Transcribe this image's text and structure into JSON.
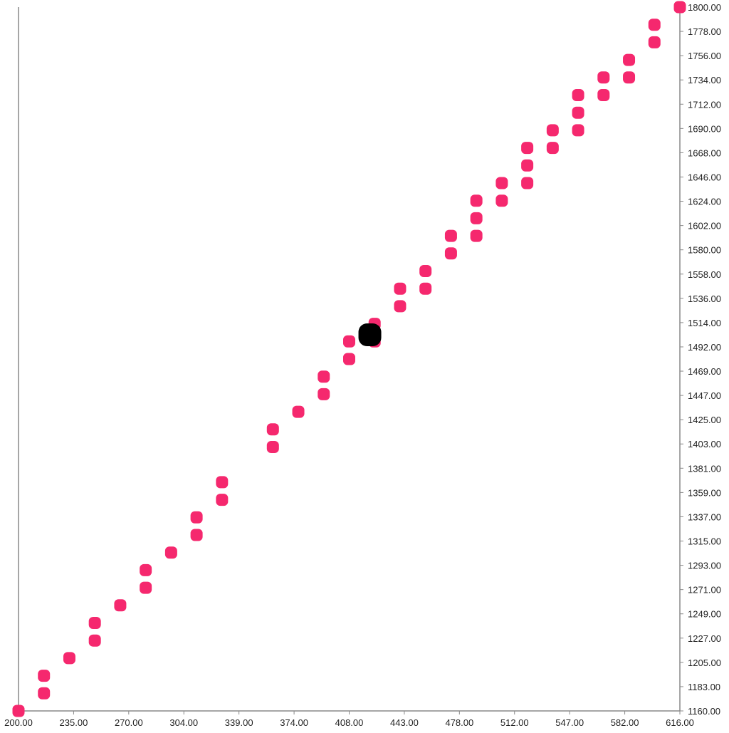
{
  "colors": {
    "point": "#f5286e",
    "highlight": "#000000",
    "axis": "#888888",
    "background": "#ffffff"
  },
  "chart_data": {
    "type": "scatter",
    "title": "",
    "xlabel": "",
    "ylabel": "",
    "xlim": [
      200,
      616
    ],
    "ylim": [
      1160,
      1800
    ],
    "grid": false,
    "legend": "none",
    "x_ticks": [
      "200.00",
      "235.00",
      "270.00",
      "304.00",
      "339.00",
      "374.00",
      "408.00",
      "443.00",
      "478.00",
      "512.00",
      "547.00",
      "582.00",
      "616.00"
    ],
    "y_ticks": [
      "1160.00",
      "1183.00",
      "1205.00",
      "1227.00",
      "1249.00",
      "1271.00",
      "1293.00",
      "1315.00",
      "1337.00",
      "1359.00",
      "1381.00",
      "1403.00",
      "1425.00",
      "1447.00",
      "1469.00",
      "1492.00",
      "1514.00",
      "1536.00",
      "1558.00",
      "1580.00",
      "1602.00",
      "1624.00",
      "1646.00",
      "1668.00",
      "1690.00",
      "1712.00",
      "1734.00",
      "1756.00",
      "1778.00",
      "1800.00"
    ],
    "series": [
      {
        "points": [
          [
            200,
            1160
          ],
          [
            216,
            1176
          ],
          [
            216,
            1192
          ],
          [
            232,
            1208
          ],
          [
            248,
            1224
          ],
          [
            248,
            1240
          ],
          [
            264,
            1256
          ],
          [
            280,
            1272
          ],
          [
            280,
            1288
          ],
          [
            296,
            1304
          ],
          [
            312,
            1320
          ],
          [
            312,
            1336
          ],
          [
            328,
            1352
          ],
          [
            328,
            1368
          ],
          [
            360,
            1400
          ],
          [
            360,
            1416
          ],
          [
            376,
            1432
          ],
          [
            392,
            1448
          ],
          [
            392,
            1464
          ],
          [
            408,
            1480
          ],
          [
            408,
            1496
          ],
          [
            424,
            1496
          ],
          [
            424,
            1512
          ],
          [
            440,
            1528
          ],
          [
            440,
            1544
          ],
          [
            456,
            1544
          ],
          [
            456,
            1560
          ],
          [
            472,
            1576
          ],
          [
            472,
            1592
          ],
          [
            488,
            1592
          ],
          [
            488,
            1608
          ],
          [
            488,
            1624
          ],
          [
            504,
            1624
          ],
          [
            504,
            1640
          ],
          [
            520,
            1640
          ],
          [
            520,
            1656
          ],
          [
            520,
            1672
          ],
          [
            536,
            1672
          ],
          [
            536,
            1688
          ],
          [
            552,
            1688
          ],
          [
            552,
            1704
          ],
          [
            552,
            1720
          ],
          [
            568,
            1720
          ],
          [
            568,
            1736
          ],
          [
            584,
            1736
          ],
          [
            584,
            1752
          ],
          [
            600,
            1768
          ],
          [
            600,
            1784
          ],
          [
            616,
            1800
          ]
        ]
      }
    ],
    "highlight_point": [
      421,
      1502
    ]
  }
}
